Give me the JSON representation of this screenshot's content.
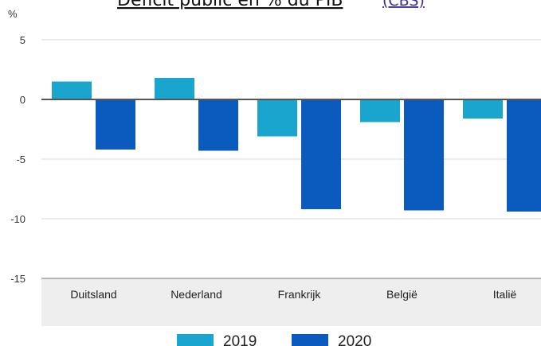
{
  "chart_data": {
    "type": "bar",
    "title": "Déficit public en % du PIB",
    "source": "(CBS)",
    "ylabel": "%",
    "ylim": [
      -15,
      5
    ],
    "yticks": [
      5,
      0,
      -5,
      -10,
      -15
    ],
    "categories": [
      "Duitsland",
      "Nederland",
      "Frankrijk",
      "België",
      "Italië"
    ],
    "series": [
      {
        "name": "2019",
        "values": [
          1.5,
          1.8,
          -3.1,
          -1.9,
          -1.6
        ],
        "color": "#1aa5cf"
      },
      {
        "name": "2020",
        "values": [
          -4.2,
          -4.3,
          -9.2,
          -9.3,
          -9.4
        ],
        "color": "#0a5bbd"
      }
    ],
    "grid": true,
    "legend_position": "bottom"
  }
}
